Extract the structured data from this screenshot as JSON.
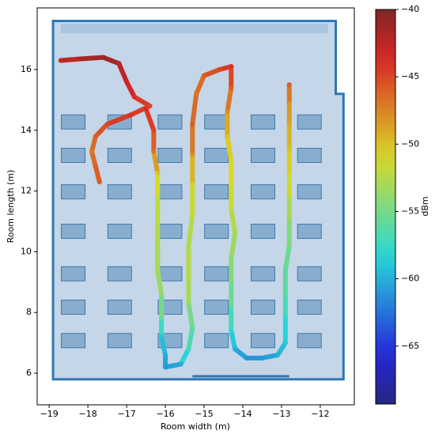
{
  "chart_data": {
    "type": "scatter",
    "xlabel": "Room width (m)",
    "ylabel": "Room length (m)",
    "colorbar_label": "dBm",
    "xlim": [
      -19.31,
      -11.12
    ],
    "ylim": [
      4.96,
      18.03
    ],
    "xticks": [
      {
        "value": -19,
        "label": "−19"
      },
      {
        "value": -18,
        "label": "−18"
      },
      {
        "value": -17,
        "label": "−17"
      },
      {
        "value": -16,
        "label": "−16"
      },
      {
        "value": -15,
        "label": "−15"
      },
      {
        "value": -14,
        "label": "−14"
      },
      {
        "value": -13,
        "label": "−13"
      },
      {
        "value": -12,
        "label": "−12"
      }
    ],
    "yticks": [
      6,
      8,
      10,
      12,
      14,
      16
    ],
    "clim": [
      -69.3,
      -40
    ],
    "cticks": [
      {
        "value": -40,
        "label": "−40"
      },
      {
        "value": -45,
        "label": "−45"
      },
      {
        "value": -50,
        "label": "−50"
      },
      {
        "value": -55,
        "label": "−55"
      },
      {
        "value": -60,
        "label": "−60"
      },
      {
        "value": -65,
        "label": "−65"
      }
    ],
    "colormap": "jet",
    "x": [
      -18.7,
      -18.2,
      -17.6,
      -17.2,
      -17.0,
      -16.8,
      -16.4,
      -16.9,
      -17.5,
      -17.8,
      -17.9,
      -17.8,
      -17.7,
      null,
      -16.5,
      -16.3,
      -16.3,
      -16.2,
      -16.2,
      -16.2,
      -16.2,
      -16.2,
      -16.1,
      -16.1,
      -16.1,
      -16.0,
      -16.0,
      -15.6,
      -15.4,
      -15.3,
      -15.4,
      -15.4,
      -15.4,
      -15.3,
      -15.3,
      -15.3,
      -15.3,
      -15.2,
      -15.0,
      -14.6,
      -14.3,
      -14.3,
      -14.4,
      -14.4,
      -14.3,
      -14.3,
      -14.3,
      -14.2,
      -14.3,
      -14.3,
      -14.3,
      -14.3,
      -14.2,
      -13.9,
      -13.5,
      -13.1,
      -12.9,
      -12.9,
      -12.9,
      -12.9,
      -12.8,
      -12.8,
      -12.8,
      -12.8,
      -12.8,
      -12.8,
      -12.8,
      -12.8
    ],
    "y": [
      16.3,
      16.35,
      16.4,
      16.2,
      15.6,
      15.1,
      14.8,
      14.5,
      14.2,
      13.8,
      13.3,
      12.8,
      12.3,
      null,
      14.7,
      14.0,
      13.3,
      12.6,
      11.8,
      11.0,
      10.2,
      9.4,
      8.6,
      7.8,
      7.2,
      6.6,
      6.2,
      6.3,
      6.8,
      7.5,
      8.3,
      9.2,
      10.2,
      11.2,
      12.2,
      13.2,
      14.2,
      15.2,
      15.8,
      16.0,
      16.1,
      15.4,
      14.6,
      13.8,
      13.0,
      12.2,
      11.4,
      10.6,
      9.8,
      9.0,
      8.2,
      7.4,
      6.8,
      6.5,
      6.5,
      6.6,
      7.0,
      7.8,
      8.6,
      9.4,
      10.2,
      11.0,
      11.8,
      12.6,
      13.4,
      14.2,
      14.9,
      15.5
    ],
    "values": [
      -43,
      -42,
      -41,
      -42,
      -43,
      -44,
      -45,
      -44,
      -45,
      -46,
      -47,
      -46,
      -46,
      null,
      -44,
      -45,
      -47,
      -50,
      -52,
      -52,
      -53,
      -53,
      -54,
      -56,
      -59,
      -60,
      -61,
      -60,
      -57,
      -56,
      -54,
      -52,
      -53,
      -52,
      -51,
      -48,
      -46,
      -47,
      -46,
      -45,
      -44,
      -46,
      -48,
      -50,
      -51,
      -51,
      -52,
      -53,
      -54,
      -55,
      -56,
      -58,
      -60,
      -61,
      -61,
      -60,
      -59,
      -58,
      -56,
      -56,
      -55,
      -54,
      -52,
      -51,
      -50,
      -49,
      -48,
      -46
    ]
  }
}
